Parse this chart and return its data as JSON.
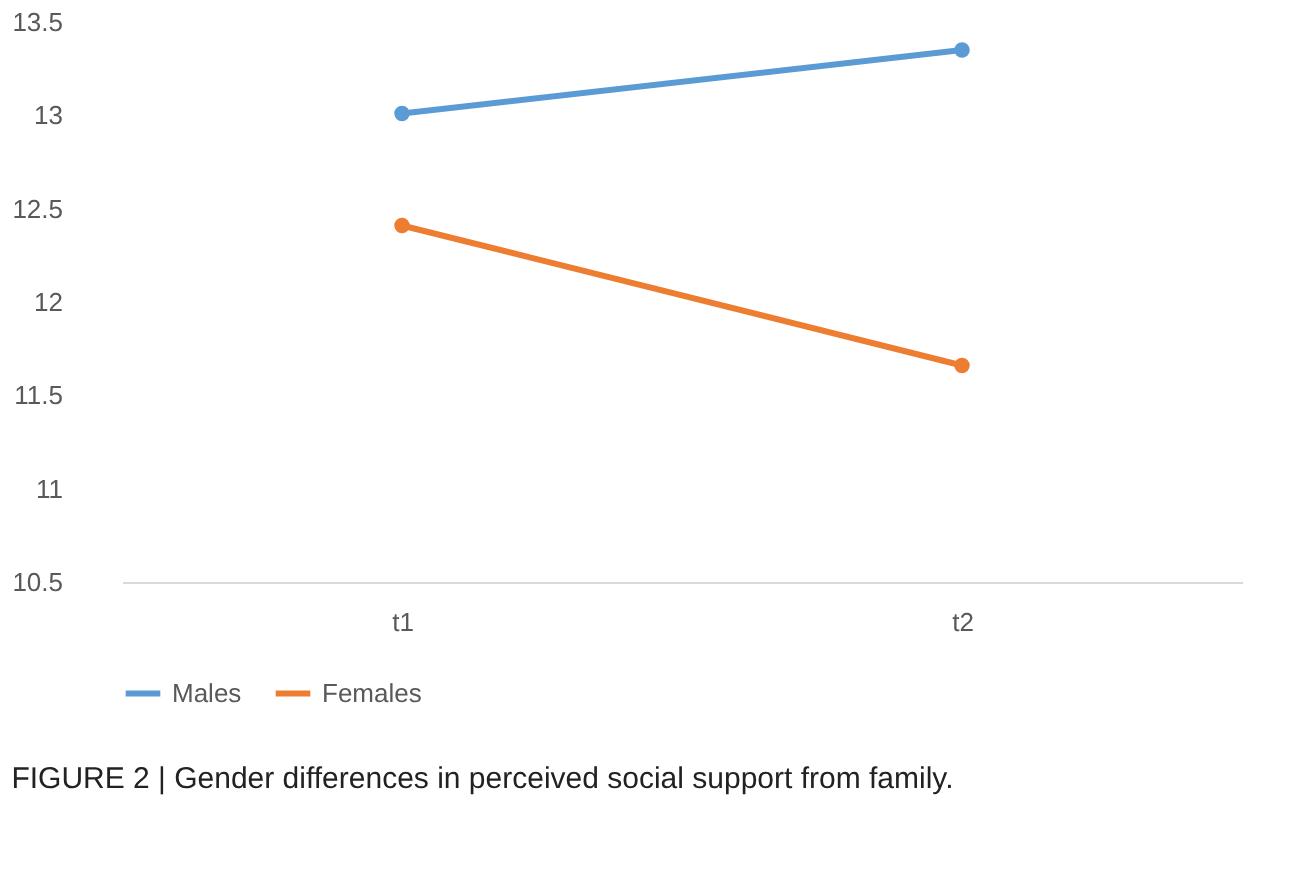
{
  "chart_data": {
    "type": "line",
    "categories": [
      "t1",
      "t2"
    ],
    "series": [
      {
        "name": "Males",
        "color": "#5b9bd5",
        "values": [
          13.01,
          13.35
        ]
      },
      {
        "name": "Females",
        "color": "#ed7d31",
        "values": [
          12.41,
          11.66
        ]
      }
    ],
    "ylim": [
      10.5,
      13.5
    ],
    "yticks": [
      10.5,
      11,
      11.5,
      12,
      12.5,
      13,
      13.5
    ],
    "grid": false,
    "legend": "bottom",
    "marker": "circle",
    "line_style": "solid",
    "annotations": [
      "FIGURE 2 | Gender differences in perceived social support from family."
    ]
  }
}
